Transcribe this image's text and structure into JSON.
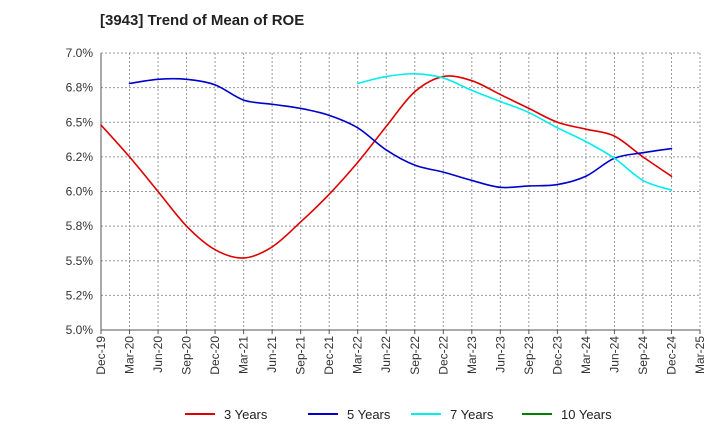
{
  "chart_data": {
    "type": "line",
    "title": "[3943]  Trend of Mean of ROE",
    "xlabel": "",
    "ylabel": "",
    "x": [
      "Dec-19",
      "Mar-20",
      "Jun-20",
      "Sep-20",
      "Dec-20",
      "Mar-21",
      "Jun-21",
      "Sep-21",
      "Dec-21",
      "Mar-22",
      "Jun-22",
      "Sep-22",
      "Dec-22",
      "Mar-23",
      "Jun-23",
      "Sep-23",
      "Dec-23",
      "Mar-24",
      "Jun-24",
      "Sep-24",
      "Dec-24",
      "Mar-25"
    ],
    "ylim": [
      5.0,
      7.0
    ],
    "yticks": [
      {
        "value": 5.0,
        "label": "5.0%"
      },
      {
        "value": 5.25,
        "label": "5.2%"
      },
      {
        "value": 5.5,
        "label": "5.5%"
      },
      {
        "value": 5.75,
        "label": "5.8%"
      },
      {
        "value": 6.0,
        "label": "6.0%"
      },
      {
        "value": 6.25,
        "label": "6.2%"
      },
      {
        "value": 6.5,
        "label": "6.5%"
      },
      {
        "value": 6.75,
        "label": "6.8%"
      },
      {
        "value": 7.0,
        "label": "7.0%"
      }
    ],
    "grid": true,
    "legend_position": "bottom",
    "series": [
      {
        "name": "3 Years",
        "color": "#dd0000",
        "values": [
          6.48,
          6.25,
          6.0,
          5.75,
          5.58,
          5.52,
          5.6,
          5.78,
          5.98,
          6.21,
          6.47,
          6.72,
          6.83,
          6.8,
          6.7,
          6.6,
          6.5,
          6.45,
          6.4,
          6.25,
          6.11,
          null
        ]
      },
      {
        "name": "5 Years",
        "color": "#0000cc",
        "values": [
          null,
          6.78,
          6.81,
          6.81,
          6.77,
          6.66,
          6.63,
          6.6,
          6.55,
          6.46,
          6.3,
          6.19,
          6.14,
          6.08,
          6.03,
          6.04,
          6.05,
          6.11,
          6.24,
          6.28,
          6.31,
          null
        ]
      },
      {
        "name": "7 Years",
        "color": "#00eeee",
        "values": [
          null,
          null,
          null,
          null,
          null,
          null,
          null,
          null,
          null,
          6.78,
          6.83,
          6.85,
          6.82,
          6.73,
          6.65,
          6.57,
          6.46,
          6.36,
          6.24,
          6.08,
          6.01,
          null
        ]
      },
      {
        "name": "10 Years",
        "color": "#008000",
        "values": [
          null,
          null,
          null,
          null,
          null,
          null,
          null,
          null,
          null,
          null,
          null,
          null,
          null,
          null,
          null,
          null,
          null,
          null,
          null,
          null,
          null,
          null
        ]
      }
    ]
  }
}
